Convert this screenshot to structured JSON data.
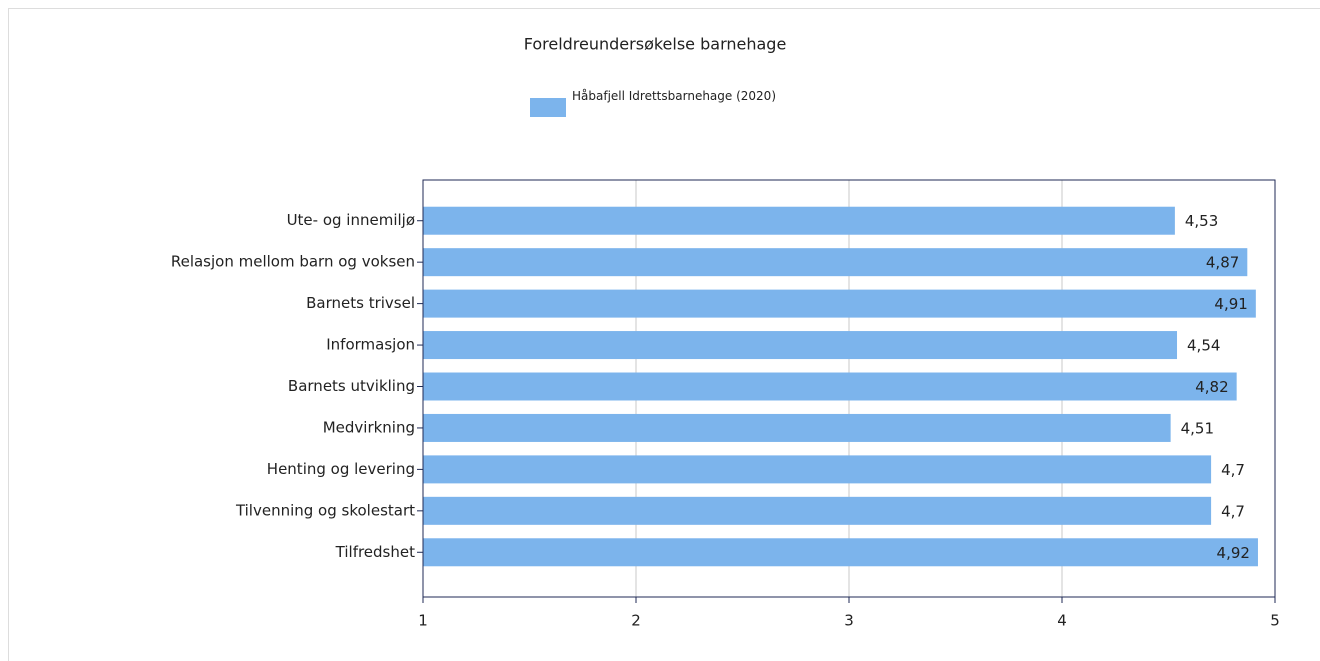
{
  "chart_data": {
    "type": "barh",
    "title": "Foreldreundersøkelse barnehage",
    "categories": [
      "Ute- og innemiljø",
      "Relasjon mellom barn og voksen",
      "Barnets trivsel",
      "Informasjon",
      "Barnets utvikling",
      "Medvirkning",
      "Henting og levering",
      "Tilvenning og skolestart",
      "Tilfredshet"
    ],
    "series": [
      {
        "name": "Håbafjell Idrettsbarnehage (2020)",
        "color": "#7cb4ec",
        "values": [
          4.53,
          4.87,
          4.91,
          4.54,
          4.82,
          4.51,
          4.7,
          4.7,
          4.92
        ],
        "value_labels": [
          "4,53",
          "4,87",
          "4,91",
          "4,54",
          "4,82",
          "4,51",
          "4,7",
          "4,7",
          "4,92"
        ]
      }
    ],
    "xlim": [
      1,
      5
    ],
    "xticks": [
      1,
      2,
      3,
      4,
      5
    ],
    "grid": true,
    "legend": "top"
  }
}
